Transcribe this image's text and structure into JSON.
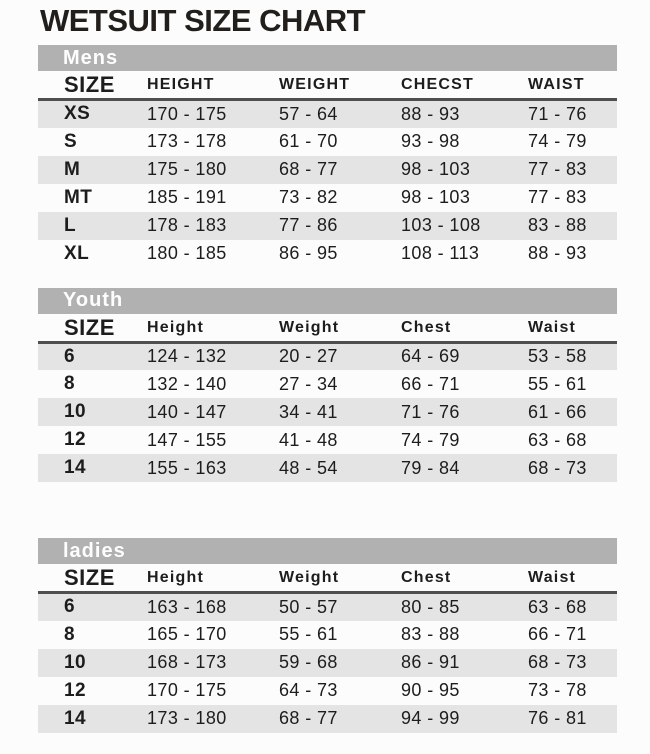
{
  "page": {
    "title": "WETSUIT SIZE CHART"
  },
  "colors": {
    "section_bar_bg": "#b1b1b1",
    "section_bar_text": "#fefefe",
    "row_stripe_bg": "#e4e4e4",
    "header_rule": "#4f4f4f",
    "text": "#1d1d1d",
    "page_bg": "#fcfcfc"
  },
  "tables": [
    {
      "section": "Mens",
      "columns": [
        "SIZE",
        "HEIGHT",
        "WEIGHT",
        "CHECST",
        "WAIST"
      ],
      "rows": [
        [
          "XS",
          "170 - 175",
          "57 - 64",
          "88 - 93",
          "71 - 76"
        ],
        [
          "S",
          "173 - 178",
          "61 - 70",
          "93 - 98",
          "74 - 79"
        ],
        [
          "M",
          "175 - 180",
          "68 - 77",
          "98 - 103",
          "77 - 83"
        ],
        [
          "MT",
          "185 - 191",
          "73 - 82",
          "98 - 103",
          "77 - 83"
        ],
        [
          "L",
          "178 - 183",
          "77 - 86",
          "103 - 108",
          "83 - 88"
        ],
        [
          "XL",
          "180 - 185",
          "86 - 95",
          "108 - 113",
          "88 - 93"
        ]
      ]
    },
    {
      "section": "Youth",
      "columns": [
        "SIZE",
        "Height",
        "Weight",
        "Chest",
        "Waist"
      ],
      "rows": [
        [
          "6",
          "124 - 132",
          "20 - 27",
          "64 - 69",
          "53 - 58"
        ],
        [
          "8",
          "132 - 140",
          "27 - 34",
          "66 - 71",
          "55 - 61"
        ],
        [
          "10",
          "140 - 147",
          "34 - 41",
          "71 - 76",
          "61 - 66"
        ],
        [
          "12",
          "147 - 155",
          "41 - 48",
          "74 - 79",
          "63 - 68"
        ],
        [
          "14",
          "155 - 163",
          "48 - 54",
          "79 - 84",
          "68 - 73"
        ]
      ]
    },
    {
      "section": "ladies",
      "columns": [
        "SIZE",
        "Height",
        "Weight",
        "Chest",
        "Waist"
      ],
      "rows": [
        [
          "6",
          "163 - 168",
          "50 - 57",
          "80 - 85",
          "63 - 68"
        ],
        [
          "8",
          "165 - 170",
          "55 - 61",
          "83 - 88",
          "66 - 71"
        ],
        [
          "10",
          "168 - 173",
          "59 - 68",
          "86 - 91",
          "68 - 73"
        ],
        [
          "12",
          "170 - 175",
          "64 - 73",
          "90 - 95",
          "73 - 78"
        ],
        [
          "14",
          "173 - 180",
          "68 - 77",
          "94 - 99",
          "76 - 81"
        ]
      ]
    }
  ]
}
